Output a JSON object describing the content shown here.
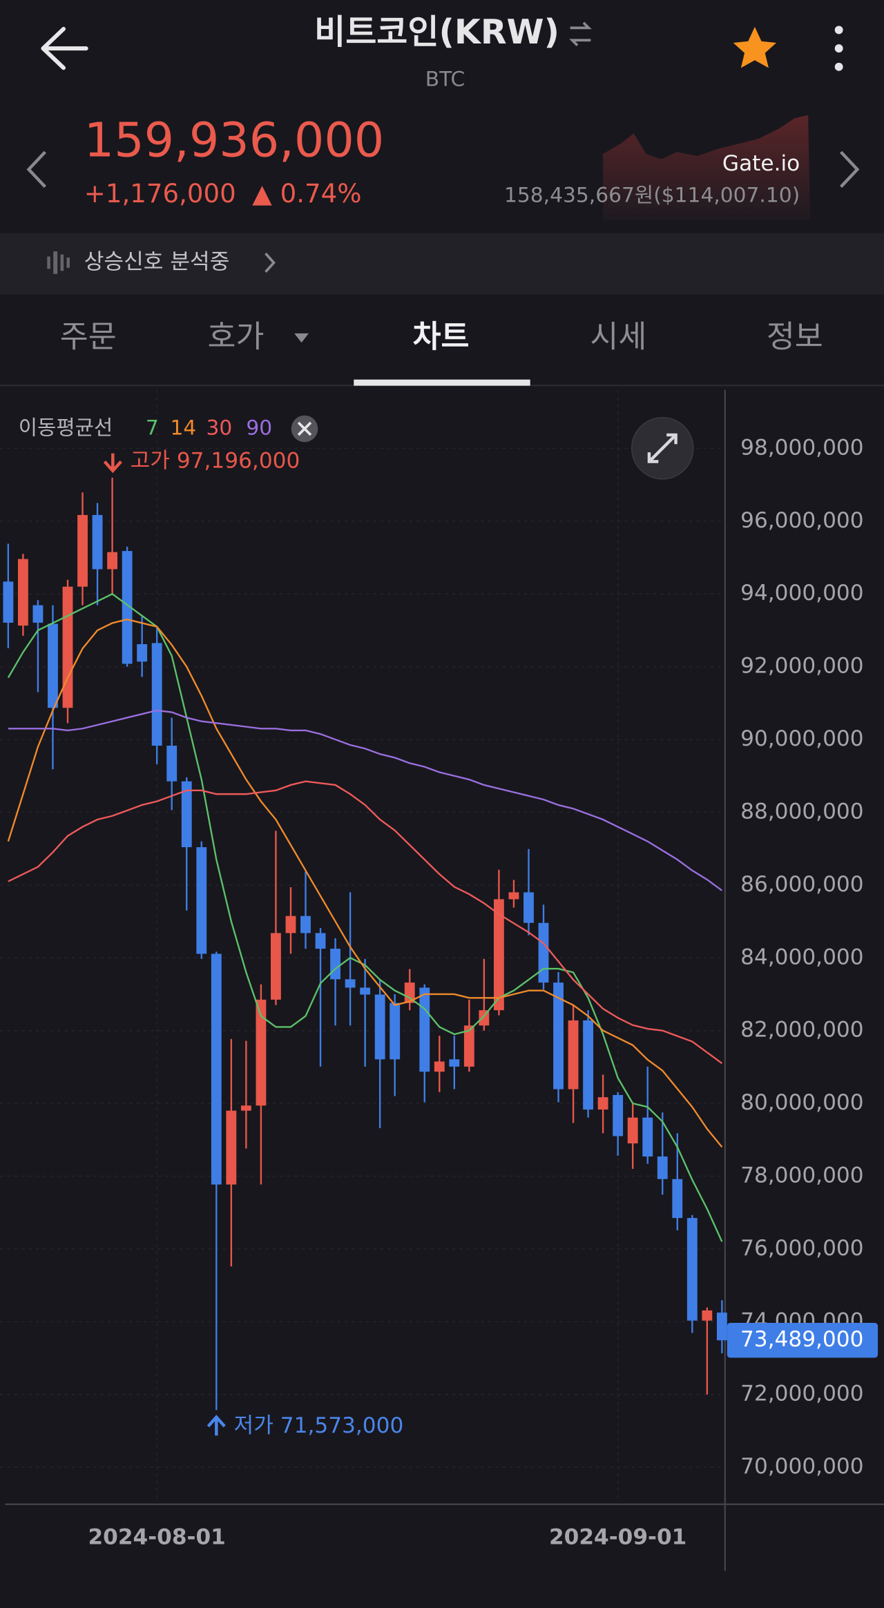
{
  "header": {
    "title": "비트코인(KRW)",
    "subtitle": "BTC"
  },
  "price": {
    "current": "159,936,000",
    "change": "+1,176,000",
    "change_rate": "▲ 0.74%",
    "exchange": "Gate.io",
    "exchange_price": "158,435,667원($114,007.10)"
  },
  "signal": "상승신호 분석중",
  "tabs": [
    "주문",
    "호가",
    "차트",
    "시세",
    "정보"
  ],
  "chart_data": {
    "type": "candlestick",
    "legend_title": "이동평균선",
    "categories": [
      null,
      null,
      null,
      null,
      null,
      null,
      null,
      null,
      null,
      null,
      "2024-08-01",
      null,
      null,
      null,
      null,
      null,
      null,
      null,
      null,
      null,
      null,
      null,
      null,
      null,
      null,
      null,
      null,
      null,
      null,
      null,
      null,
      null,
      null,
      null,
      null,
      null,
      null,
      null,
      null,
      null,
      null,
      "2024-09-01",
      null,
      null,
      null,
      null,
      null,
      null,
      null
    ],
    "open": [
      94340000,
      93130000,
      93690000,
      93180000,
      90870000,
      94200000,
      96170000,
      94680000,
      95180000,
      92620000,
      92650000,
      89830000,
      88850000,
      87040000,
      84110000,
      77770000,
      79800000,
      79940000,
      82850000,
      84680000,
      85150000,
      84680000,
      84250000,
      83410000,
      83180000,
      82990000,
      82760000,
      82760000,
      83180000,
      80870000,
      81210000,
      81010000,
      82140000,
      82560000,
      85610000,
      85800000,
      84960000,
      83320000,
      80390000,
      82280000,
      79830000,
      80230000,
      78900000,
      79610000,
      78540000,
      77920000,
      76850000,
      74030000,
      74250000
    ],
    "high": [
      95380000,
      95100000,
      93830000,
      93690000,
      94390000,
      96790000,
      96500000,
      97196000,
      95300000,
      93400000,
      93070000,
      90600000,
      88960000,
      87200000,
      84170000,
      81770000,
      81720000,
      83270000,
      87490000,
      85940000,
      86370000,
      84820000,
      84540000,
      85800000,
      83970000,
      83410000,
      83000000,
      83690000,
      83270000,
      81860000,
      81860000,
      82850000,
      83970000,
      86420000,
      86140000,
      86990000,
      85460000,
      83610000,
      82700000,
      82560000,
      80790000,
      80310000,
      80030000,
      81010000,
      79750000,
      79180000,
      76930000,
      74390000,
      74590000
    ],
    "low": [
      92510000,
      92850000,
      91300000,
      89180000,
      90450000,
      93690000,
      93690000,
      93970000,
      92000000,
      91720000,
      89320000,
      88060000,
      85300000,
      83970000,
      71573000,
      75520000,
      78760000,
      77770000,
      82700000,
      84110000,
      84250000,
      81010000,
      82140000,
      82140000,
      81010000,
      79320000,
      80200000,
      82560000,
      80030000,
      80310000,
      80390000,
      80870000,
      82000000,
      82420000,
      85380000,
      84620000,
      83130000,
      80030000,
      79460000,
      79610000,
      79180000,
      78560000,
      78200000,
      78340000,
      77490000,
      76510000,
      73690000,
      72000000,
      73130000
    ],
    "close": [
      93210000,
      94960000,
      93210000,
      90870000,
      94200000,
      96170000,
      94680000,
      95150000,
      92080000,
      92140000,
      89830000,
      88850000,
      87040000,
      84110000,
      77770000,
      79800000,
      79940000,
      82850000,
      84680000,
      85150000,
      84680000,
      84250000,
      83410000,
      83180000,
      82990000,
      81210000,
      81210000,
      83320000,
      80870000,
      81150000,
      81010000,
      82140000,
      82560000,
      85610000,
      85800000,
      84960000,
      83320000,
      80390000,
      82280000,
      79830000,
      80170000,
      79100000,
      79610000,
      78540000,
      77920000,
      76850000,
      74030000,
      74310000,
      73489000
    ],
    "last_label": "73,489,000",
    "up_color": "#e8574a",
    "down_color": "#3f7ee6",
    "series": [
      {
        "name": "7",
        "color": "#5cc16a",
        "values": [
          91700000,
          92400000,
          93000000,
          93200000,
          93400000,
          93600000,
          93800000,
          94000000,
          93700000,
          93400000,
          93100000,
          92300000,
          90600000,
          88900000,
          86700000,
          85000000,
          83600000,
          82400000,
          82100000,
          82100000,
          82400000,
          83300000,
          83700000,
          84000000,
          83800000,
          83400000,
          83100000,
          82900000,
          82600000,
          82100000,
          81900000,
          82000000,
          82400000,
          82900000,
          83100000,
          83400000,
          83700000,
          83700000,
          83600000,
          82900000,
          81900000,
          80700000,
          80000000,
          79900000,
          79500000,
          78800000,
          77900000,
          77100000,
          76200000
        ]
      },
      {
        "name": "14",
        "color": "#f08a2c",
        "values": [
          87200000,
          88500000,
          89800000,
          90800000,
          91700000,
          92500000,
          93000000,
          93200000,
          93300000,
          93200000,
          93100000,
          92600000,
          92000000,
          91200000,
          90300000,
          89600000,
          88900000,
          88300000,
          87800000,
          87100000,
          86400000,
          85700000,
          85000000,
          84300000,
          83700000,
          83200000,
          82700000,
          82800000,
          83000000,
          83000000,
          83000000,
          82900000,
          82900000,
          82900000,
          83000000,
          83100000,
          83100000,
          82900000,
          82700000,
          82400000,
          82000000,
          81800000,
          81600000,
          81200000,
          80900000,
          80400000,
          79900000,
          79300000,
          78800000
        ]
      },
      {
        "name": "30",
        "color": "#ee5a5a",
        "values": [
          86100000,
          86300000,
          86500000,
          86900000,
          87350000,
          87600000,
          87800000,
          87900000,
          88050000,
          88200000,
          88300000,
          88450000,
          88600000,
          88600000,
          88500000,
          88500000,
          88500000,
          88550000,
          88600000,
          88750000,
          88850000,
          88800000,
          88750000,
          88500000,
          88200000,
          87800000,
          87500000,
          87100000,
          86700000,
          86300000,
          85950000,
          85750000,
          85500000,
          85200000,
          84950000,
          84700000,
          84400000,
          83900000,
          83400000,
          83000000,
          82600000,
          82350000,
          82150000,
          82050000,
          82000000,
          81850000,
          81700000,
          81400000,
          81100000
        ]
      },
      {
        "name": "90",
        "color": "#9a6fe0",
        "values": [
          90300000,
          90300000,
          90300000,
          90300000,
          90250000,
          90300000,
          90400000,
          90500000,
          90600000,
          90700000,
          90800000,
          90750000,
          90600000,
          90500000,
          90450000,
          90400000,
          90350000,
          90300000,
          90300000,
          90250000,
          90250000,
          90150000,
          90000000,
          89850000,
          89750000,
          89600000,
          89500000,
          89350000,
          89250000,
          89100000,
          89000000,
          88900000,
          88750000,
          88650000,
          88550000,
          88450000,
          88350000,
          88200000,
          88100000,
          87950000,
          87800000,
          87600000,
          87400000,
          87200000,
          86950000,
          86700000,
          86400000,
          86150000,
          85850000
        ]
      }
    ],
    "annotations": [
      {
        "text": "고가 97,196,000",
        "color": "#e8574a"
      },
      {
        "text": "저가 71,573,000",
        "color": "#4a86ea"
      }
    ],
    "ylim": [
      69040000,
      99610000
    ],
    "yticks": [
      {
        "value": 70000000,
        "label": "70,000,000"
      },
      {
        "value": 72000000,
        "label": "72,000,000"
      },
      {
        "value": 74000000,
        "label": "74,000,000"
      },
      {
        "value": 76000000,
        "label": "76,000,000"
      },
      {
        "value": 78000000,
        "label": "78,000,000"
      },
      {
        "value": 80000000,
        "label": "80,000,000"
      },
      {
        "value": 82000000,
        "label": "82,000,000"
      },
      {
        "value": 84000000,
        "label": "84,000,000"
      },
      {
        "value": 86000000,
        "label": "86,000,000"
      },
      {
        "value": 88000000,
        "label": "88,000,000"
      },
      {
        "value": 90000000,
        "label": "90,000,000"
      },
      {
        "value": 92000000,
        "label": "92,000,000"
      },
      {
        "value": 94000000,
        "label": "94,000,000"
      },
      {
        "value": 96000000,
        "label": "96,000,000"
      },
      {
        "value": 98000000,
        "label": "98,000,000"
      }
    ],
    "grid": true
  }
}
